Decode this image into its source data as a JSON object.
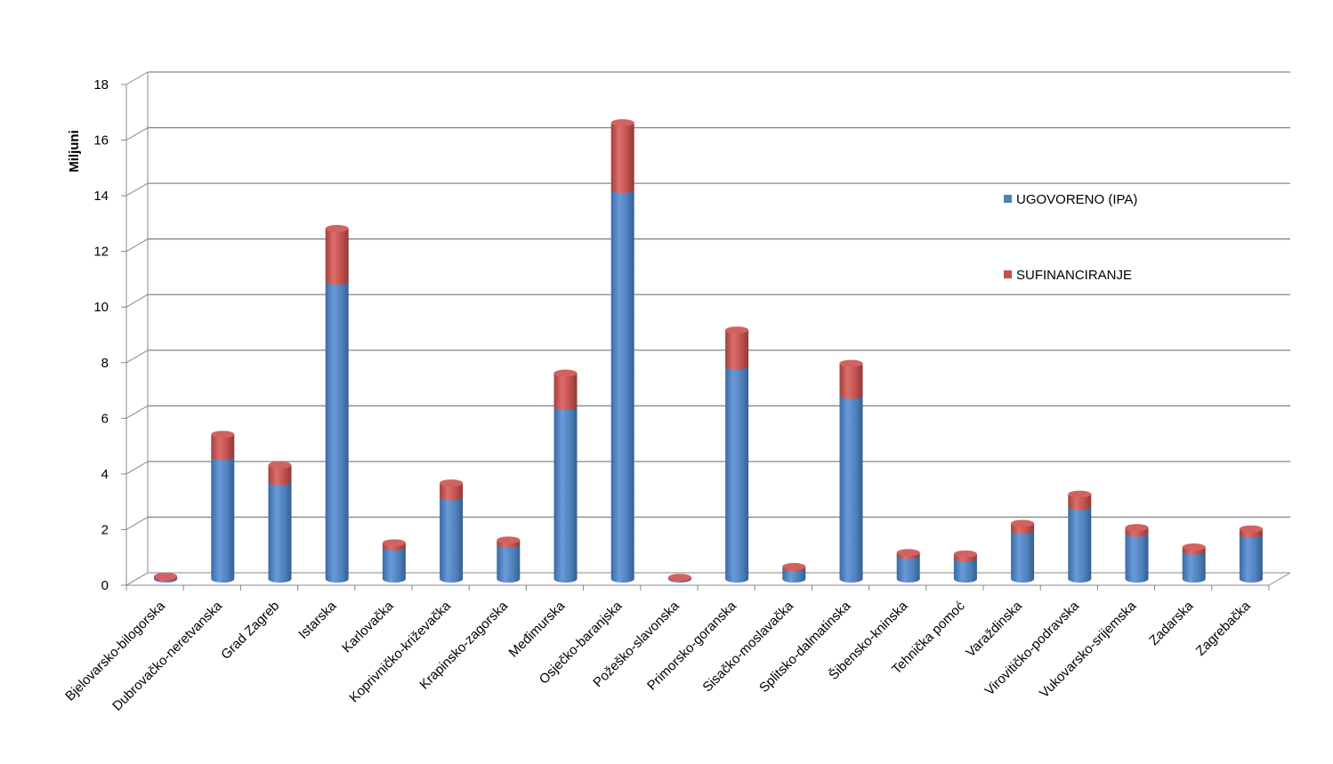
{
  "chart_data": {
    "type": "bar",
    "stacked": true,
    "style": "3d-cylinder",
    "ylabel": "Miljuni",
    "ylim": [
      0,
      18
    ],
    "yticks": [
      0,
      2,
      4,
      6,
      8,
      10,
      12,
      14,
      16,
      18
    ],
    "grid": true,
    "legend_position": "right",
    "categories": [
      "Bjelovarsko-bilogorska",
      "Dubrovačko-neretvanska",
      "Grad Zagreb",
      "Istarska",
      "Karlovačka",
      "Koprivničko-križevačka",
      "Krapinsko-zagorska",
      "Međimurska",
      "Osječko-baranjska",
      "Požeško-slavonska",
      "Primorsko-goranska",
      "Sisačko-moslavačka",
      "Splitsko-dalmatinska",
      "Šibensko-kninska",
      "Tehnička pomoć",
      "Varaždinska",
      "Virovitičko-podravska",
      "Vukovarsko-srijemska",
      "Zadarska",
      "Zagrebačka"
    ],
    "series": [
      {
        "name": "UGOVORENO (IPA)",
        "color": "#4f81bd",
        "values": [
          0.05,
          4.4,
          3.5,
          10.7,
          1.15,
          2.95,
          1.25,
          6.2,
          14.0,
          0.03,
          7.65,
          0.4,
          6.6,
          0.85,
          0.75,
          1.75,
          2.6,
          1.65,
          1.0,
          1.6
        ]
      },
      {
        "name": "SUFINANCIRANJE",
        "color": "#c0504d",
        "values": [
          0.05,
          0.8,
          0.6,
          1.9,
          0.15,
          0.5,
          0.15,
          1.2,
          2.4,
          0.03,
          1.3,
          0.05,
          1.15,
          0.1,
          0.15,
          0.25,
          0.45,
          0.2,
          0.15,
          0.2
        ]
      }
    ]
  }
}
